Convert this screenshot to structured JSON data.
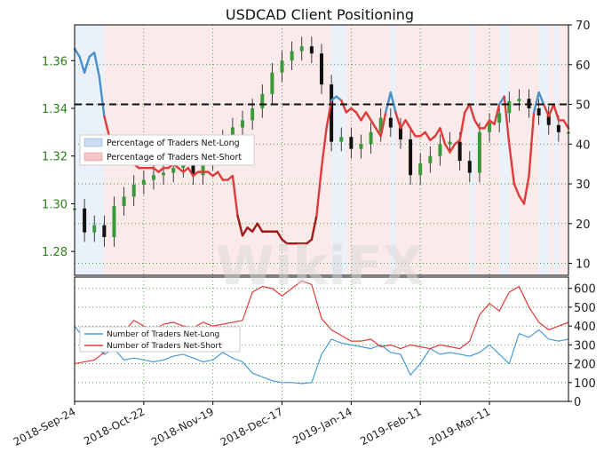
{
  "chart_data": [
    {
      "type": "line",
      "title": "USDCAD Client Positioning",
      "left_axis": {
        "ticks": [
          1.28,
          1.3,
          1.32,
          1.34,
          1.36
        ],
        "tick_labels": [
          "1.28",
          "1.30",
          "1.32",
          "1.34",
          "1.36"
        ],
        "range": [
          1.27,
          1.375
        ],
        "color": "#2e7d1e"
      },
      "right_axis": {
        "ticks": [
          10,
          20,
          30,
          40,
          50,
          60,
          70
        ],
        "tick_labels": [
          "10",
          "20",
          "30",
          "40",
          "50",
          "60",
          "70"
        ],
        "range": [
          7,
          70
        ]
      },
      "reference_line": {
        "value": 50,
        "axis": "right",
        "style": "dashed"
      },
      "legend_placement": "center-left",
      "legend": [
        {
          "label": "Percentage of Traders Net-Long",
          "color": "#c9dcf2"
        },
        {
          "label": "Percentage of Traders Net-Short",
          "color": "#f6c6c6"
        }
      ],
      "series": [
        {
          "name": "Percentage of Traders Net-Short",
          "axis": "right",
          "note_colors": {
            "above_50": "#e03b3b",
            "below_50": "#4a90c8"
          },
          "x": [
            0,
            2,
            4,
            6,
            8,
            10,
            12,
            14,
            16,
            18,
            20,
            22,
            24,
            26,
            28,
            30,
            32,
            34,
            36,
            38,
            40,
            42,
            44,
            46,
            48,
            50,
            52,
            54,
            56,
            58,
            60,
            62,
            64,
            66,
            68,
            70,
            72,
            74,
            76,
            78,
            80,
            82,
            84,
            86,
            88,
            90,
            92,
            94,
            96,
            98,
            100,
            102,
            104,
            106,
            108,
            110,
            112,
            114,
            116,
            118,
            120,
            122,
            124,
            126,
            128,
            130,
            132,
            134,
            136,
            138,
            140,
            142,
            144,
            146,
            148,
            150,
            152,
            154,
            156,
            158,
            160,
            162,
            164,
            166,
            168,
            170,
            172,
            174,
            176,
            178,
            180,
            182,
            184,
            186,
            188,
            190,
            192,
            194,
            196,
            198,
            200
          ],
          "values": [
            64,
            62,
            58,
            62,
            63,
            57,
            47,
            42,
            38,
            36,
            36,
            35,
            35,
            34,
            34,
            34,
            34,
            33,
            34,
            34,
            35,
            34,
            33,
            34,
            32,
            33,
            33,
            33,
            32,
            33,
            31,
            31,
            32,
            22,
            17,
            19,
            18,
            20,
            18,
            18,
            18,
            18,
            16,
            15,
            15,
            15,
            15,
            15,
            16,
            22,
            34,
            44,
            51,
            52,
            51,
            48,
            49,
            48,
            46,
            48,
            46,
            44,
            42,
            48,
            53,
            48,
            44,
            46,
            44,
            42,
            42,
            43,
            41,
            42,
            44,
            40,
            38,
            40,
            41,
            48,
            50,
            46,
            44,
            44,
            46,
            45,
            50,
            52,
            40,
            30,
            27,
            25,
            32,
            48,
            53,
            50,
            47,
            50,
            46,
            46,
            44
          ]
        },
        {
          "name": "USDCAD price (candlesticks)",
          "axis": "left",
          "x": [
            0,
            4,
            8,
            12,
            16,
            20,
            24,
            28,
            32,
            36,
            40,
            44,
            48,
            52,
            56,
            60,
            64,
            68,
            72,
            76,
            80,
            84,
            88,
            92,
            96,
            100,
            104,
            108,
            112,
            116,
            120,
            124,
            128,
            132,
            136,
            140,
            144,
            148,
            152,
            156,
            160,
            164,
            168,
            172,
            176,
            180,
            184,
            188,
            192,
            196,
            200
          ],
          "values": [
            1.298,
            1.288,
            1.291,
            1.286,
            1.299,
            1.303,
            1.308,
            1.31,
            1.312,
            1.313,
            1.315,
            1.316,
            1.312,
            1.318,
            1.322,
            1.327,
            1.332,
            1.335,
            1.34,
            1.346,
            1.355,
            1.36,
            1.364,
            1.366,
            1.363,
            1.35,
            1.326,
            1.328,
            1.323,
            1.325,
            1.33,
            1.336,
            1.332,
            1.327,
            1.312,
            1.317,
            1.32,
            1.325,
            1.326,
            1.318,
            1.313,
            1.33,
            1.334,
            1.338,
            1.343,
            1.344,
            1.34,
            1.337,
            1.333,
            1.33,
            1.33
          ]
        }
      ]
    },
    {
      "type": "line",
      "y_axis": {
        "ticks": [
          0,
          100,
          200,
          300,
          400,
          500,
          600
        ],
        "tick_labels": [
          "0",
          "100",
          "200",
          "300",
          "400",
          "500",
          "600"
        ],
        "range": [
          0,
          660
        ]
      },
      "x_tick_labels": [
        "2018-Sep-24",
        "2018-Oct-22",
        "2018-Nov-19",
        "2018-Dec-17",
        "2019-Jan-14",
        "2019-Feb-11",
        "2019-Mar-11"
      ],
      "x_tick_positions": [
        0,
        28,
        56,
        84,
        112,
        140,
        168
      ],
      "legend_placement": "center-left",
      "series": [
        {
          "name": "Number of Traders Net-Long",
          "color": "#4a9bd4",
          "x": [
            0,
            4,
            8,
            12,
            16,
            20,
            24,
            28,
            32,
            36,
            40,
            44,
            48,
            52,
            56,
            60,
            64,
            68,
            72,
            76,
            80,
            84,
            88,
            92,
            96,
            100,
            104,
            108,
            112,
            116,
            120,
            124,
            128,
            132,
            136,
            140,
            144,
            148,
            152,
            156,
            160,
            164,
            168,
            172,
            176,
            180,
            184,
            188,
            192,
            196,
            200
          ],
          "values": [
            400,
            330,
            290,
            250,
            280,
            220,
            230,
            220,
            210,
            220,
            240,
            250,
            230,
            210,
            220,
            260,
            230,
            210,
            150,
            130,
            110,
            100,
            100,
            95,
            100,
            250,
            330,
            310,
            300,
            290,
            280,
            300,
            260,
            250,
            140,
            200,
            280,
            250,
            260,
            250,
            240,
            260,
            300,
            250,
            200,
            360,
            340,
            380,
            330,
            320,
            330
          ]
        },
        {
          "name": "Number of Traders Net-Short",
          "color": "#e03b3b",
          "x": [
            0,
            4,
            8,
            12,
            16,
            20,
            24,
            28,
            32,
            36,
            40,
            44,
            48,
            52,
            56,
            60,
            64,
            68,
            72,
            76,
            80,
            84,
            88,
            92,
            96,
            100,
            104,
            108,
            112,
            116,
            120,
            124,
            128,
            132,
            136,
            140,
            144,
            148,
            152,
            156,
            160,
            164,
            168,
            172,
            176,
            180,
            184,
            188,
            192,
            196,
            200
          ],
          "values": [
            200,
            210,
            220,
            260,
            330,
            370,
            430,
            400,
            380,
            410,
            420,
            400,
            390,
            420,
            400,
            410,
            420,
            430,
            580,
            610,
            600,
            560,
            600,
            640,
            620,
            440,
            380,
            350,
            320,
            320,
            330,
            290,
            300,
            280,
            300,
            290,
            280,
            300,
            290,
            280,
            320,
            460,
            520,
            480,
            580,
            610,
            500,
            420,
            380,
            400,
            420
          ]
        }
      ]
    }
  ],
  "watermark": "WikiFX"
}
